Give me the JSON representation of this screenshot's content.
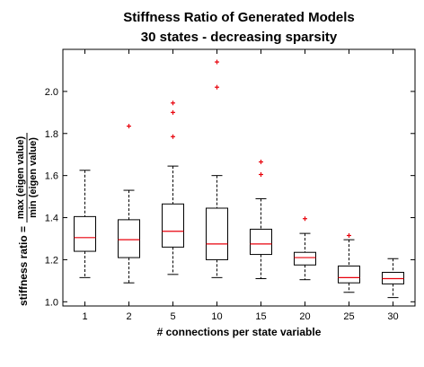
{
  "chart_data": {
    "type": "box",
    "title_line1": "Stiffness Ratio of Generated Models",
    "title_line2": "30 states - decreasing sparsity",
    "xlabel": "# connections per state variable",
    "ylabel_prefix": "stiffness ratio =",
    "ylabel_numerator": "max (eigen value)",
    "ylabel_denominator": "min (eigen value)",
    "ylim": [
      0.98,
      2.2
    ],
    "yticks": [
      "1.0",
      "1.2",
      "1.4",
      "1.6",
      "1.8",
      "2.0"
    ],
    "yticks_values": [
      1.0,
      1.2,
      1.4,
      1.6,
      1.8,
      2.0
    ],
    "categories": [
      "1",
      "2",
      "5",
      "10",
      "15",
      "20",
      "25",
      "30"
    ],
    "boxes": [
      {
        "whisker_low": 1.115,
        "q1": 1.24,
        "median": 1.305,
        "q3": 1.405,
        "whisker_high": 1.625,
        "outliers": []
      },
      {
        "whisker_low": 1.09,
        "q1": 1.21,
        "median": 1.295,
        "q3": 1.39,
        "whisker_high": 1.53,
        "outliers": [
          1.835
        ]
      },
      {
        "whisker_low": 1.13,
        "q1": 1.26,
        "median": 1.335,
        "q3": 1.465,
        "whisker_high": 1.645,
        "outliers": [
          1.785,
          1.9,
          1.945
        ]
      },
      {
        "whisker_low": 1.115,
        "q1": 1.2,
        "median": 1.275,
        "q3": 1.445,
        "whisker_high": 1.6,
        "outliers": [
          2.02,
          2.14
        ]
      },
      {
        "whisker_low": 1.11,
        "q1": 1.225,
        "median": 1.275,
        "q3": 1.345,
        "whisker_high": 1.49,
        "outliers": [
          1.605,
          1.665
        ]
      },
      {
        "whisker_low": 1.105,
        "q1": 1.175,
        "median": 1.21,
        "q3": 1.235,
        "whisker_high": 1.325,
        "outliers": [
          1.395
        ]
      },
      {
        "whisker_low": 1.045,
        "q1": 1.09,
        "median": 1.115,
        "q3": 1.17,
        "whisker_high": 1.295,
        "outliers": [
          1.315
        ]
      },
      {
        "whisker_low": 1.02,
        "q1": 1.085,
        "median": 1.11,
        "q3": 1.14,
        "whisker_high": 1.205,
        "outliers": []
      }
    ],
    "colors": {
      "box": "#000000",
      "median": "#e8000b",
      "outlier": "#e8000b"
    },
    "grid": false
  }
}
